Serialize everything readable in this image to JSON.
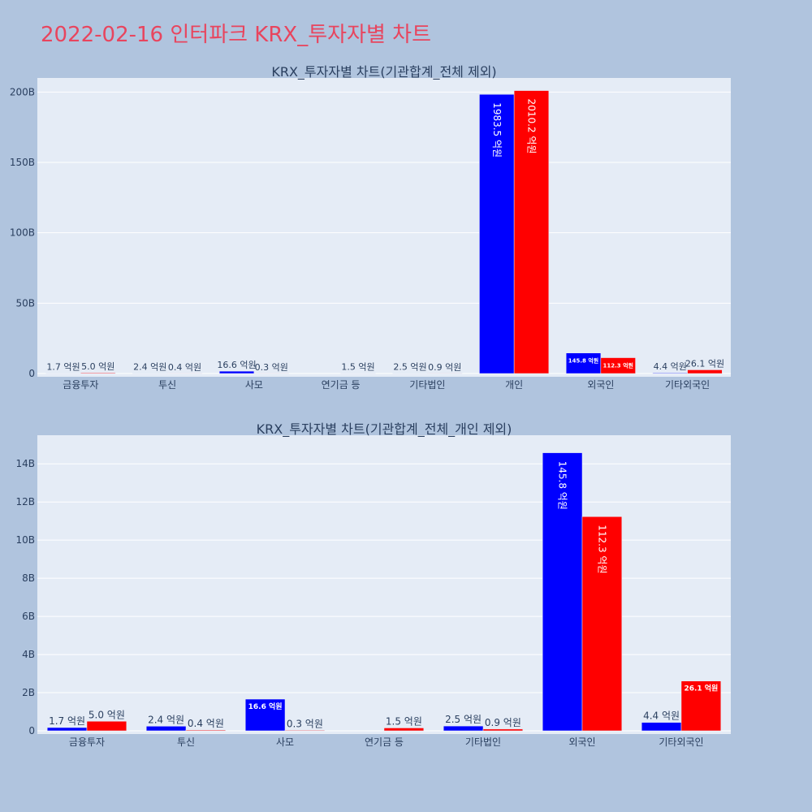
{
  "page": {
    "title": "2022-02-16 인터파크 KRX_투자자별 차트"
  },
  "colors": {
    "background": "#b0c4de",
    "plot_background": "#e5ecf6",
    "title": "#e8455e",
    "series_buy": "#0000ff",
    "series_sell": "#ff0000",
    "text": "#2a3f5f",
    "grid": "#ffffff"
  },
  "chart_data": [
    {
      "type": "bar",
      "title": "KRX_투자자별 차트(기관합계_전체 제외)",
      "categories": [
        "금융투자",
        "투신",
        "사모",
        "연기금 등",
        "기타법인",
        "개인",
        "외국인",
        "기타외국인"
      ],
      "series": [
        {
          "color": "#0000ff",
          "values": [
            170000000.0,
            240000000.0,
            1660000000.0,
            0,
            250000000.0,
            198350000000.0,
            14580000000.0,
            440000000.0
          ],
          "labels": [
            "1.7 억원",
            "2.4 억원",
            "16.6 억원",
            "",
            "2.5 억원",
            "1983.5 억원",
            "145.8 억원",
            "4.4 억원"
          ]
        },
        {
          "color": "#ff0000",
          "values": [
            500000000.0,
            40000000.0,
            30000000.0,
            150000000.0,
            90000000.0,
            201020000000.0,
            11230000000.0,
            2610000000.0
          ],
          "labels": [
            "5.0 억원",
            "0.4 억원",
            "0.3 억원",
            "1.5 억원",
            "0.9 억원",
            "2010.2 억원",
            "112.3 억원",
            "26.1 억원"
          ]
        }
      ],
      "yticks": [
        0,
        50000000000.0,
        100000000000.0,
        150000000000.0,
        200000000000.0
      ],
      "ytick_labels": [
        "0",
        "50B",
        "100B",
        "150B",
        "200B"
      ],
      "ylim": [
        0,
        210000000000.0
      ],
      "grid": true,
      "legend": "none"
    },
    {
      "type": "bar",
      "title": "KRX_투자자별 차트(기관합계_전체_개인 제외)",
      "categories": [
        "금융투자",
        "투신",
        "사모",
        "연기금 등",
        "기타법인",
        "외국인",
        "기타외국인"
      ],
      "series": [
        {
          "color": "#0000ff",
          "values": [
            170000000.0,
            240000000.0,
            1660000000.0,
            0,
            250000000.0,
            14580000000.0,
            440000000.0
          ],
          "labels": [
            "1.7 억원",
            "2.4 억원",
            "16.6 억원",
            "",
            "2.5 억원",
            "145.8 억원",
            "4.4 억원"
          ]
        },
        {
          "color": "#ff0000",
          "values": [
            500000000.0,
            40000000.0,
            30000000.0,
            150000000.0,
            90000000.0,
            11230000000.0,
            2610000000.0
          ],
          "labels": [
            "5.0 억원",
            "0.4 억원",
            "0.3 억원",
            "1.5 억원",
            "0.9 억원",
            "112.3 억원",
            "26.1 억원"
          ]
        }
      ],
      "yticks": [
        0,
        2000000000.0,
        4000000000.0,
        6000000000.0,
        8000000000.0,
        10000000000.0,
        12000000000.0,
        14000000000.0
      ],
      "ytick_labels": [
        "0",
        "2B",
        "4B",
        "6B",
        "8B",
        "10B",
        "12B",
        "14B"
      ],
      "ylim": [
        0,
        15500000000.0
      ],
      "grid": true,
      "legend": "none"
    }
  ]
}
